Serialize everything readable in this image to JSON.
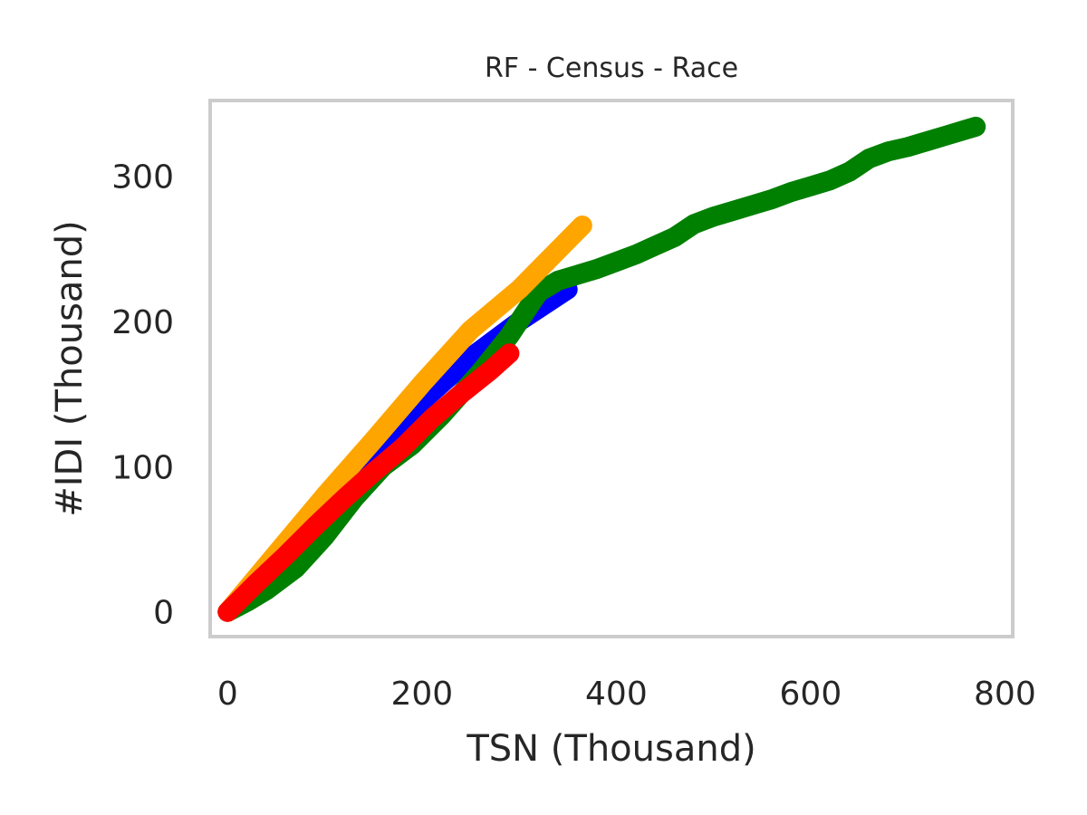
{
  "chart_data": {
    "type": "line",
    "title": "RF - Census - Race",
    "xlabel": "TSN (Thousand)",
    "ylabel": "#IDI (Thousand)",
    "xlim": [
      -18,
      808
    ],
    "ylim": [
      -17,
      352
    ],
    "xticks": [
      0,
      200,
      400,
      600,
      800
    ],
    "yticks": [
      0,
      100,
      200,
      300
    ],
    "xtick_labels": [
      "0",
      "200",
      "400",
      "600",
      "800"
    ],
    "ytick_labels": [
      "0",
      "100",
      "200",
      "300"
    ],
    "grid": false,
    "series": [
      {
        "color": "#0000ff",
        "x": [
          0,
          50,
          100,
          150,
          200,
          250,
          300,
          350
        ],
        "y": [
          0,
          35,
          70,
          108,
          145,
          175,
          200,
          222
        ]
      },
      {
        "color": "#008000",
        "x": [
          0,
          20,
          40,
          70,
          100,
          130,
          160,
          190,
          220,
          240,
          260,
          290,
          310,
          320,
          340,
          360,
          380,
          400,
          420,
          440,
          460,
          480,
          500,
          520,
          540,
          560,
          580,
          600,
          620,
          640,
          660,
          680,
          700,
          720,
          740,
          760,
          770
        ],
        "y": [
          0,
          7,
          15,
          30,
          52,
          78,
          100,
          115,
          135,
          150,
          165,
          190,
          210,
          220,
          228,
          232,
          236,
          241,
          246,
          252,
          258,
          267,
          272,
          276,
          280,
          284,
          289,
          293,
          297,
          303,
          312,
          317,
          320,
          324,
          328,
          332,
          334
        ]
      },
      {
        "color": "#ffa500",
        "x": [
          0,
          50,
          100,
          150,
          200,
          250,
          300,
          365
        ],
        "y": [
          0,
          40,
          80,
          118,
          157,
          194,
          222,
          266
        ]
      },
      {
        "color": "#ff0000",
        "x": [
          0,
          30,
          60,
          90,
          120,
          150,
          180,
          210,
          240,
          270,
          290
        ],
        "y": [
          0,
          20,
          39,
          59,
          78,
          96,
          113,
          133,
          150,
          166,
          178
        ]
      }
    ]
  }
}
